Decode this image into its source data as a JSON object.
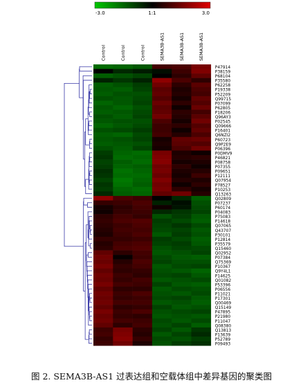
{
  "chart_data": {
    "type": "heatmap",
    "caption": "图 2. SEMA3B-AS1 过表达组和空载体组中差异基因的聚类图",
    "colorbar": {
      "min_label": "-3.0",
      "mid_label": "1:1",
      "max_label": "3.0",
      "colors": {
        "low": "#00c800",
        "mid": "#000000",
        "high": "#e00000"
      }
    },
    "columns": [
      "Control",
      "Control",
      "Control",
      "SEMA3B-AS1",
      "SEMA3B-AS1",
      "SEMA3B-AS1"
    ],
    "rows": [
      "P47914",
      "P38159",
      "P68104",
      "P35580",
      "P62258",
      "P19338",
      "P52209",
      "Q99715",
      "P07099",
      "P62805",
      "P18206",
      "Q96AY3",
      "P02545",
      "Q09666",
      "P16401",
      "Q6NZI2",
      "P60723",
      "Q9P2E9",
      "P06396",
      "P0DMV9",
      "P46821",
      "P08758",
      "P07355",
      "P09651",
      "P12111",
      "Q07954",
      "P78527",
      "P10253",
      "Q13263",
      "Q02809",
      "P07237",
      "P60174",
      "P04083",
      "P75083",
      "P14618",
      "Q07065",
      "Q43707",
      "P30101",
      "P12814",
      "P35579",
      "Q15460",
      "Q02952",
      "P07384",
      "Q75369",
      "P10367",
      "Q9Y4L1",
      "P14625",
      "Q01082",
      "P53396",
      "P06556",
      "P11021",
      "P17301",
      "Q00469",
      "Q15149",
      "P47895",
      "P21980",
      "P11047",
      "Q08380",
      "Q13813",
      "P13639",
      "P52789",
      "P09493"
    ],
    "values": [
      [
        -1.6,
        -1.5,
        -1.3,
        0.9,
        1.0,
        1.6
      ],
      [
        0.0,
        -0.6,
        -0.4,
        -0.2,
        0.8,
        1.7
      ],
      [
        -1.4,
        -1.2,
        -1.0,
        0.0,
        0.6,
        1.3
      ],
      [
        -0.5,
        -0.8,
        -0.5,
        1.9,
        1.0,
        0.6
      ],
      [
        -1.4,
        -1.2,
        -0.9,
        1.5,
        0.6,
        1.2
      ],
      [
        -1.3,
        -1.4,
        -1.0,
        1.2,
        0.4,
        1.0
      ],
      [
        -1.4,
        -1.2,
        -1.2,
        1.3,
        0.5,
        0.9
      ],
      [
        -1.2,
        -1.3,
        -1.1,
        1.1,
        0.3,
        1.3
      ],
      [
        -1.5,
        -1.3,
        -1.0,
        1.4,
        0.6,
        1.1
      ],
      [
        -1.3,
        -1.5,
        -1.2,
        1.2,
        0.2,
        1.4
      ],
      [
        -1.4,
        -1.3,
        -1.1,
        1.3,
        0.6,
        0.9
      ],
      [
        -1.2,
        -1.4,
        -1.0,
        1.5,
        0.5,
        1.2
      ],
      [
        -1.3,
        -1.2,
        -1.2,
        1.0,
        0.3,
        1.5
      ],
      [
        -1.5,
        -1.3,
        -1.1,
        0.8,
        0.6,
        1.1
      ],
      [
        -1.2,
        -1.1,
        -0.9,
        0.8,
        0.2,
        1.3
      ],
      [
        -1.4,
        -1.5,
        -1.1,
        0.9,
        0.5,
        1.0
      ],
      [
        -1.3,
        -1.2,
        -1.0,
        0.3,
        1.3,
        1.4
      ],
      [
        -1.4,
        -1.3,
        -1.2,
        0.4,
        1.2,
        1.1
      ],
      [
        -1.2,
        -1.4,
        -1.0,
        0.3,
        1.0,
        1.5
      ],
      [
        -0.9,
        -1.5,
        -1.6,
        1.6,
        0.4,
        0.2
      ],
      [
        -0.8,
        -1.6,
        -1.5,
        1.7,
        0.5,
        0.6
      ],
      [
        -1.0,
        -1.4,
        -1.6,
        1.8,
        0.3,
        0.4
      ],
      [
        -0.9,
        -1.5,
        -1.4,
        1.5,
        0.6,
        0.2
      ],
      [
        -0.7,
        -1.7,
        -1.5,
        1.6,
        0.4,
        0.5
      ],
      [
        -0.8,
        -1.6,
        -1.6,
        1.4,
        0.3,
        0.8
      ],
      [
        -1.0,
        -1.8,
        -1.5,
        1.7,
        0.5,
        0.4
      ],
      [
        -0.8,
        -1.7,
        -1.4,
        1.5,
        0.2,
        0.6
      ],
      [
        -0.9,
        -1.5,
        -1.6,
        1.6,
        0.6,
        0.3
      ],
      [
        -0.6,
        -1.4,
        -1.5,
        1.3,
        1.5,
        0.5
      ],
      [
        1.9,
        1.0,
        0.8,
        0.0,
        -0.6,
        -1.4
      ],
      [
        0.7,
        0.8,
        1.0,
        -0.5,
        -0.2,
        -1.2
      ],
      [
        0.3,
        0.6,
        0.9,
        0.2,
        -0.3,
        -1.1
      ],
      [
        0.2,
        0.7,
        0.8,
        -0.6,
        -0.8,
        -1.0
      ],
      [
        0.6,
        0.9,
        0.7,
        -1.2,
        -0.9,
        -1.3
      ],
      [
        0.7,
        1.0,
        1.1,
        -0.9,
        -1.1,
        -1.4
      ],
      [
        0.6,
        0.8,
        1.0,
        -1.0,
        -0.8,
        -1.1
      ],
      [
        0.5,
        0.9,
        0.9,
        -1.1,
        -1.0,
        -1.3
      ],
      [
        0.4,
        0.8,
        1.0,
        -1.3,
        -0.9,
        -1.2
      ],
      [
        0.7,
        0.7,
        0.8,
        -0.9,
        -1.1,
        -1.4
      ],
      [
        0.5,
        0.9,
        1.0,
        -1.0,
        -0.9,
        -1.3
      ],
      [
        0.6,
        1.0,
        1.1,
        -1.2,
        -1.0,
        -1.1
      ],
      [
        1.3,
        0.6,
        0.9,
        -1.3,
        -1.2,
        -1.0
      ],
      [
        1.5,
        0.1,
        0.8,
        -1.1,
        -1.3,
        -1.4
      ],
      [
        1.4,
        0.5,
        1.0,
        -1.0,
        -1.2,
        -1.2
      ],
      [
        1.6,
        0.7,
        0.9,
        -1.3,
        -1.1,
        -1.0
      ],
      [
        1.3,
        0.6,
        0.7,
        -1.2,
        -1.3,
        -1.5
      ],
      [
        1.5,
        0.8,
        0.6,
        -1.1,
        -1.0,
        -1.3
      ],
      [
        1.4,
        0.7,
        0.9,
        -1.3,
        -1.2,
        -1.1
      ],
      [
        1.6,
        0.9,
        0.8,
        -1.0,
        -1.3,
        -1.4
      ],
      [
        1.3,
        0.6,
        0.6,
        -1.3,
        -1.1,
        -1.2
      ],
      [
        1.5,
        0.8,
        1.0,
        -1.2,
        -1.3,
        -1.1
      ],
      [
        1.4,
        0.7,
        0.8,
        -1.1,
        -1.0,
        -1.3
      ],
      [
        1.5,
        0.9,
        0.9,
        -1.3,
        -1.2,
        -1.4
      ],
      [
        1.3,
        0.6,
        0.7,
        -1.0,
        -1.3,
        -1.2
      ],
      [
        1.6,
        0.8,
        1.0,
        -1.2,
        -1.1,
        -1.0
      ],
      [
        1.4,
        0.7,
        0.6,
        -1.3,
        -1.2,
        -1.3
      ],
      [
        1.5,
        0.9,
        0.8,
        -1.1,
        -1.3,
        -1.1
      ],
      [
        1.3,
        0.6,
        0.9,
        -1.2,
        -1.0,
        -1.4
      ],
      [
        0.8,
        1.6,
        0.6,
        -1.0,
        -1.3,
        -0.8
      ],
      [
        0.9,
        1.7,
        0.5,
        -1.3,
        -1.0,
        -0.6
      ],
      [
        0.7,
        1.8,
        0.7,
        -1.1,
        -1.2,
        -0.9
      ],
      [
        0.8,
        1.5,
        0.4,
        -1.2,
        -0.9,
        -0.7
      ]
    ]
  }
}
